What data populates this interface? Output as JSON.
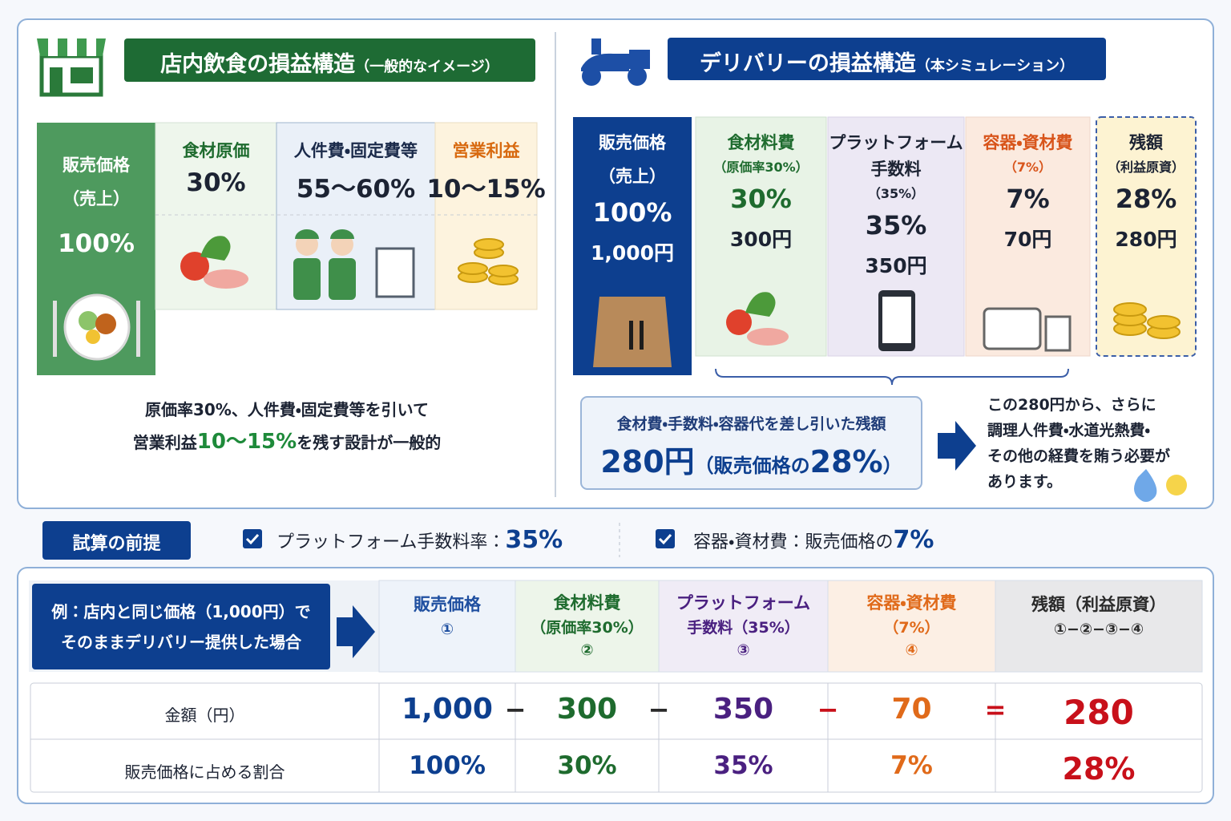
{
  "instore": {
    "title": "店内飲食の損益構造",
    "subtitle": "（一般的なイメージ）",
    "columns": [
      {
        "label": [
          "販売価格",
          "（売上）"
        ],
        "value": "100%"
      },
      {
        "label": [
          "食材原価"
        ],
        "value": "30%"
      },
      {
        "label": [
          "人件費・固定費等"
        ],
        "value": "55〜60%"
      },
      {
        "label": [
          "営業利益"
        ],
        "value": "10〜15%"
      }
    ],
    "caption": {
      "line1": "原価率30%、人件費・固定費等を引いて",
      "line2_pre": "営業利益",
      "line2_highlight": "10〜15%",
      "line2_post": "を残す設計が一般的"
    }
  },
  "delivery": {
    "title": "デリバリーの損益構造",
    "subtitle": "（本シミュレーション）",
    "columns": [
      {
        "label": [
          "販売価格",
          "（売上）"
        ],
        "percent": "100%",
        "amount": "1,000円"
      },
      {
        "label": [
          "食材料費"
        ],
        "note": "（原価率30%）",
        "percent": "30%",
        "amount": "300円"
      },
      {
        "label": [
          "プラットフォーム",
          "手数料"
        ],
        "note": "（35%）",
        "percent": "35%",
        "amount": "350円"
      },
      {
        "label": [
          "容器・資材費"
        ],
        "note": "（7%）",
        "percent": "7%",
        "amount": "70円"
      },
      {
        "label": [
          "残額"
        ],
        "note": "（利益原資）",
        "percent": "28%",
        "amount": "280円"
      }
    ],
    "summary": {
      "label": "食材費・手数料・容器代を差し引いた残額",
      "amount": "280円",
      "detail_pre": "（販売価格の",
      "detail_value": "28%",
      "detail_post": "）"
    },
    "note": [
      "この280円から、さらに",
      "調理人件費・水道光熱費・",
      "その他の経費を賄う必要が",
      "あります。"
    ]
  },
  "assumptions": {
    "label": "試算の前提",
    "items": [
      {
        "label": "プラットフォーム手数料率：",
        "value": "35%"
      },
      {
        "label": "容器・資材費：販売価格の",
        "value": "7%"
      }
    ]
  },
  "calc": {
    "example": [
      "例：店内と同じ価格（1,000円）で",
      "そのままデリバリー提供した場合"
    ],
    "headers": [
      {
        "lines": [
          "販売価格",
          "①"
        ]
      },
      {
        "lines": [
          "食材料費",
          "（原価率30%）",
          "②"
        ]
      },
      {
        "lines": [
          "プラットフォーム",
          "手数料（35%）",
          "③"
        ]
      },
      {
        "lines": [
          "容器・資材費",
          "（7%）",
          "④"
        ]
      },
      {
        "lines": [
          "残額（利益原資）",
          "①−②−③−④"
        ]
      }
    ],
    "rows": [
      {
        "label": "金額（円）",
        "values": [
          "1,000",
          "300",
          "350",
          "70",
          "280"
        ]
      },
      {
        "label": "販売価格に占める割合",
        "values": [
          "100%",
          "30%",
          "35%",
          "7%",
          "28%"
        ]
      }
    ],
    "operators": [
      "−",
      "−",
      "−",
      "="
    ]
  }
}
